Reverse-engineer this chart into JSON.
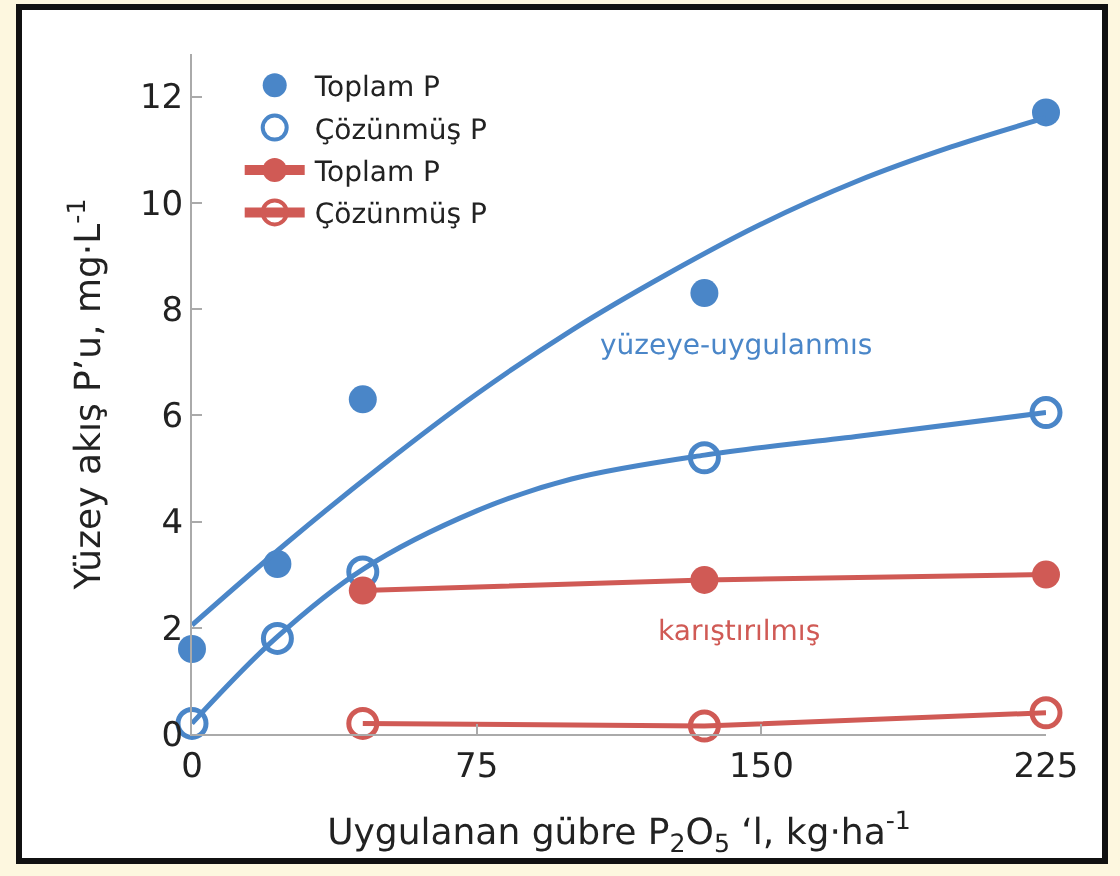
{
  "chart_data": {
    "type": "scatter",
    "xlabel": "Uygulanan gübre P$_{2}$O$_{5}$ ‘l, kg·ha$^{-1}$",
    "ylabel": "Yüzey akış P’u, mg·L$^{-1}$",
    "xlim": [
      0,
      225
    ],
    "xticks": [
      0,
      75,
      150,
      225
    ],
    "ylim": [
      0,
      12.8
    ],
    "yticks": [
      0,
      2,
      4,
      6,
      8,
      10,
      12
    ],
    "grid": false,
    "legend": "top left",
    "series": [
      {
        "name": "Toplam P",
        "type": "scatter",
        "marker": "circle",
        "color": "#4a86c8",
        "x": [
          0,
          22.5,
          45,
          135,
          225
        ],
        "values": [
          1.6,
          3.2,
          6.3,
          8.3,
          11.7
        ]
      },
      {
        "name": "Çözünmüş P",
        "type": "scatter",
        "marker": "circle-open",
        "color": "#4a86c8",
        "x": [
          0,
          22.5,
          45,
          135,
          225
        ],
        "values": [
          0.2,
          1.8,
          3.05,
          5.2,
          6.05
        ]
      },
      {
        "name": "Toplam P",
        "type": "line",
        "marker": "circle",
        "color": "#d05a55",
        "x": [
          45,
          135,
          225
        ],
        "values": [
          2.7,
          2.9,
          3.0
        ]
      },
      {
        "name": "Çözünmüş P",
        "type": "line",
        "marker": "circle-open",
        "color": "#d05a55",
        "x": [
          45,
          135,
          225
        ],
        "values": [
          0.2,
          0.15,
          0.4
        ]
      },
      {
        "type": "line",
        "marker": "none",
        "color": "#4a86c8",
        "x": [
          0,
          25,
          50,
          75,
          100,
          125,
          150,
          175,
          200,
          225
        ],
        "values": [
          2.05,
          3.6,
          5.05,
          6.4,
          7.6,
          8.65,
          9.6,
          10.4,
          11.05,
          11.6
        ]
      },
      {
        "type": "line",
        "marker": "none",
        "color": "#4a86c8",
        "x": [
          0,
          22,
          45,
          75,
          100,
          135,
          175,
          225
        ],
        "values": [
          0.2,
          1.8,
          3.1,
          4.2,
          4.8,
          5.25,
          5.6,
          6.05
        ]
      }
    ],
    "annotations": [
      "yüzeye-uygulanmıs",
      "karıştırılmış"
    ]
  }
}
